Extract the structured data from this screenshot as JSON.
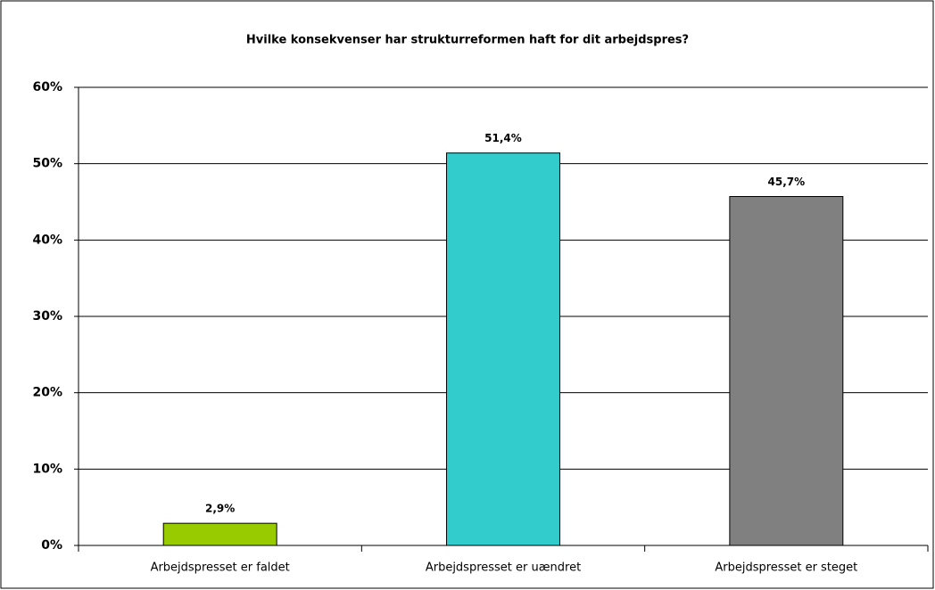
{
  "chart_data": {
    "type": "bar",
    "title": "Hvilke konsekvenser har strukturreformen haft for dit arbejdspres?",
    "categories": [
      "Arbejdspresset er faldet",
      "Arbejdspresset er uændret",
      "Arbejdspresset er steget"
    ],
    "values": [
      2.9,
      51.4,
      45.7
    ],
    "value_labels": [
      "2,9%",
      "51,4%",
      "45,7%"
    ],
    "colors": [
      "#99cc00",
      "#33cccc",
      "#808080"
    ],
    "ylim": [
      0,
      60
    ],
    "yticks": [
      {
        "value": 0,
        "label": "0%"
      },
      {
        "value": 10,
        "label": "10%"
      },
      {
        "value": 20,
        "label": "20%"
      },
      {
        "value": 30,
        "label": "30%"
      },
      {
        "value": 40,
        "label": "40%"
      },
      {
        "value": 50,
        "label": "50%"
      },
      {
        "value": 60,
        "label": "60%"
      }
    ],
    "grid": true
  }
}
